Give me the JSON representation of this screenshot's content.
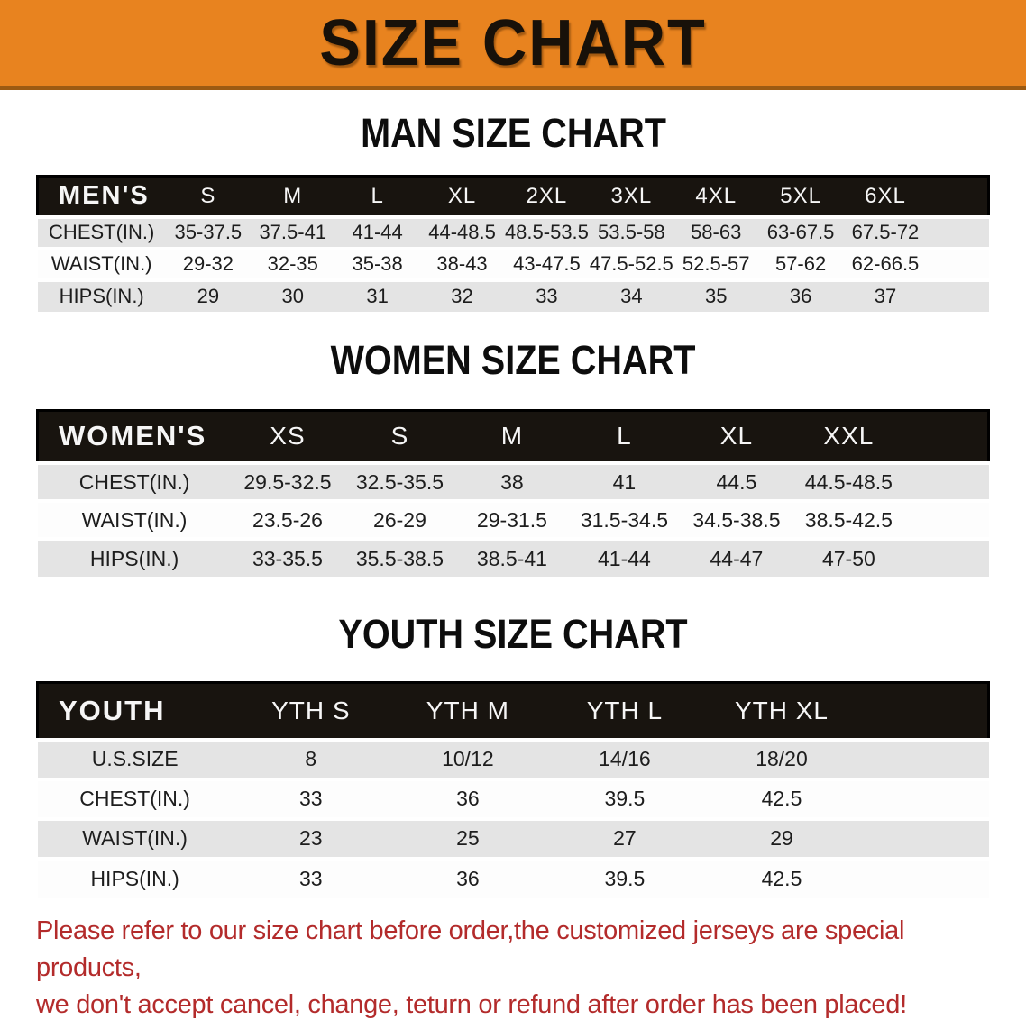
{
  "banner": {
    "title": "SIZE CHART",
    "background_color": "#e8831f"
  },
  "men": {
    "heading": "MAN SIZE CHART",
    "corner_label": "MEN'S",
    "columns": [
      "S",
      "M",
      "L",
      "XL",
      "2XL",
      "3XL",
      "4XL",
      "5XL",
      "6XL"
    ],
    "rows": [
      {
        "label": "CHEST(IN.)",
        "values": [
          "35-37.5",
          "37.5-41",
          "41-44",
          "44-48.5",
          "48.5-53.5",
          "53.5-58",
          "58-63",
          "63-67.5",
          "67.5-72"
        ]
      },
      {
        "label": "WAIST(IN.)",
        "values": [
          "29-32",
          "32-35",
          "35-38",
          "38-43",
          "43-47.5",
          "47.5-52.5",
          "52.5-57",
          "57-62",
          "62-66.5"
        ]
      },
      {
        "label": "HIPS(IN.)",
        "values": [
          "29",
          "30",
          "31",
          "32",
          "33",
          "34",
          "35",
          "36",
          "37"
        ]
      }
    ]
  },
  "women": {
    "heading": "WOMEN SIZE CHART",
    "corner_label": "WOMEN'S",
    "columns": [
      "XS",
      "S",
      "M",
      "L",
      "XL",
      "XXL"
    ],
    "rows": [
      {
        "label": "CHEST(IN.)",
        "values": [
          "29.5-32.5",
          "32.5-35.5",
          "38",
          "41",
          "44.5",
          "44.5-48.5"
        ]
      },
      {
        "label": "WAIST(IN.)",
        "values": [
          "23.5-26",
          "26-29",
          "29-31.5",
          "31.5-34.5",
          "34.5-38.5",
          "38.5-42.5"
        ]
      },
      {
        "label": "HIPS(IN.)",
        "values": [
          "33-35.5",
          "35.5-38.5",
          "38.5-41",
          "41-44",
          "44-47",
          "47-50"
        ]
      }
    ]
  },
  "youth": {
    "heading": "YOUTH SIZE CHART",
    "corner_label": "YOUTH",
    "columns": [
      "YTH S",
      "YTH M",
      "YTH L",
      "YTH XL"
    ],
    "rows": [
      {
        "label": "U.S.SIZE",
        "values": [
          "8",
          "10/12",
          "14/16",
          "18/20"
        ]
      },
      {
        "label": "CHEST(IN.)",
        "values": [
          "33",
          "36",
          "39.5",
          "42.5"
        ]
      },
      {
        "label": "WAIST(IN.)",
        "values": [
          "23",
          "25",
          "27",
          "29"
        ]
      },
      {
        "label": "HIPS(IN.)",
        "values": [
          "33",
          "36",
          "39.5",
          "42.5"
        ]
      }
    ]
  },
  "footer": {
    "line1": "Please refer to our size chart before order,the customized jerseys are special products,",
    "line2": "we don't accept cancel, change, teturn or refund after order has been placed!",
    "text_color": "#b32b2b"
  }
}
